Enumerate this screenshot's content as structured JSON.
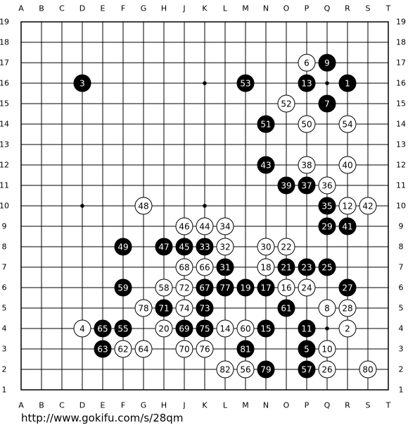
{
  "board": {
    "size": 19,
    "columns": [
      "A",
      "B",
      "C",
      "D",
      "E",
      "F",
      "G",
      "H",
      "J",
      "K",
      "L",
      "M",
      "N",
      "O",
      "P",
      "Q",
      "R",
      "S",
      "T"
    ],
    "rows": [
      "19",
      "18",
      "17",
      "16",
      "15",
      "14",
      "13",
      "12",
      "11",
      "10",
      "9",
      "8",
      "7",
      "6",
      "5",
      "4",
      "3",
      "2",
      "1"
    ],
    "hoshi": [
      "D16",
      "K16",
      "Q16",
      "D10",
      "K10",
      "Q10",
      "D4",
      "K4",
      "Q4"
    ],
    "colors": {
      "board": "#ffffff",
      "line": "#000000",
      "black_stone": "#000000",
      "white_stone": "#ffffff",
      "black_label": "#ffffff",
      "white_label": "#000000"
    }
  },
  "moves": [
    {
      "n": "1",
      "color": "black",
      "pt": "R16"
    },
    {
      "n": "2",
      "color": "white",
      "pt": "R4"
    },
    {
      "n": "3",
      "color": "black",
      "pt": "D16"
    },
    {
      "n": "4",
      "color": "white",
      "pt": "D4"
    },
    {
      "n": "5",
      "color": "black",
      "pt": "P3"
    },
    {
      "n": "6",
      "color": "white",
      "pt": "P17"
    },
    {
      "n": "7",
      "color": "black",
      "pt": "Q15"
    },
    {
      "n": "8",
      "color": "white",
      "pt": "Q5"
    },
    {
      "n": "9",
      "color": "black",
      "pt": "Q17"
    },
    {
      "n": "10",
      "color": "white",
      "pt": "Q3"
    },
    {
      "n": "11",
      "color": "black",
      "pt": "P4"
    },
    {
      "n": "12",
      "color": "white",
      "pt": "R10"
    },
    {
      "n": "13",
      "color": "black",
      "pt": "P16"
    },
    {
      "n": "14",
      "color": "white",
      "pt": "L4"
    },
    {
      "n": "15",
      "color": "black",
      "pt": "N4"
    },
    {
      "n": "16",
      "color": "white",
      "pt": "O6"
    },
    {
      "n": "17",
      "color": "black",
      "pt": "N6"
    },
    {
      "n": "18",
      "color": "white",
      "pt": "N7"
    },
    {
      "n": "19",
      "color": "black",
      "pt": "M6"
    },
    {
      "n": "20",
      "color": "white",
      "pt": "H4"
    },
    {
      "n": "21",
      "color": "black",
      "pt": "O7"
    },
    {
      "n": "22",
      "color": "white",
      "pt": "O8"
    },
    {
      "n": "23",
      "color": "black",
      "pt": "P7"
    },
    {
      "n": "24",
      "color": "white",
      "pt": "P6"
    },
    {
      "n": "25",
      "color": "black",
      "pt": "Q7"
    },
    {
      "n": "26",
      "color": "white",
      "pt": "Q2"
    },
    {
      "n": "27",
      "color": "black",
      "pt": "R6"
    },
    {
      "n": "28",
      "color": "white",
      "pt": "R5"
    },
    {
      "n": "29",
      "color": "black",
      "pt": "Q9"
    },
    {
      "n": "30",
      "color": "white",
      "pt": "N8"
    },
    {
      "n": "31",
      "color": "black",
      "pt": "L7"
    },
    {
      "n": "32",
      "color": "white",
      "pt": "L8"
    },
    {
      "n": "33",
      "color": "black",
      "pt": "K8"
    },
    {
      "n": "34",
      "color": "white",
      "pt": "L9"
    },
    {
      "n": "35",
      "color": "black",
      "pt": "Q10"
    },
    {
      "n": "36",
      "color": "white",
      "pt": "Q11"
    },
    {
      "n": "37",
      "color": "black",
      "pt": "P11"
    },
    {
      "n": "38",
      "color": "white",
      "pt": "P12"
    },
    {
      "n": "39",
      "color": "black",
      "pt": "O11"
    },
    {
      "n": "40",
      "color": "white",
      "pt": "R12"
    },
    {
      "n": "41",
      "color": "black",
      "pt": "R9"
    },
    {
      "n": "42",
      "color": "white",
      "pt": "S10"
    },
    {
      "n": "43",
      "color": "black",
      "pt": "N12"
    },
    {
      "n": "44",
      "color": "white",
      "pt": "K9"
    },
    {
      "n": "45",
      "color": "black",
      "pt": "J8"
    },
    {
      "n": "46",
      "color": "white",
      "pt": "J9"
    },
    {
      "n": "47",
      "color": "black",
      "pt": "H8"
    },
    {
      "n": "48",
      "color": "white",
      "pt": "G10"
    },
    {
      "n": "49",
      "color": "black",
      "pt": "F8"
    },
    {
      "n": "50",
      "color": "white",
      "pt": "P14"
    },
    {
      "n": "51",
      "color": "black",
      "pt": "N14"
    },
    {
      "n": "52",
      "color": "white",
      "pt": "O15"
    },
    {
      "n": "53",
      "color": "black",
      "pt": "M16"
    },
    {
      "n": "54",
      "color": "white",
      "pt": "R14"
    },
    {
      "n": "55",
      "color": "black",
      "pt": "F4"
    },
    {
      "n": "56",
      "color": "white",
      "pt": "M2"
    },
    {
      "n": "57",
      "color": "black",
      "pt": "P2"
    },
    {
      "n": "58",
      "color": "white",
      "pt": "H6"
    },
    {
      "n": "59",
      "color": "black",
      "pt": "F6"
    },
    {
      "n": "60",
      "color": "white",
      "pt": "M4"
    },
    {
      "n": "61",
      "color": "black",
      "pt": "O5"
    },
    {
      "n": "62",
      "color": "white",
      "pt": "F3"
    },
    {
      "n": "63",
      "color": "black",
      "pt": "E3"
    },
    {
      "n": "64",
      "color": "white",
      "pt": "G3"
    },
    {
      "n": "65",
      "color": "black",
      "pt": "E4"
    },
    {
      "n": "66",
      "color": "white",
      "pt": "K7"
    },
    {
      "n": "67",
      "color": "black",
      "pt": "K6"
    },
    {
      "n": "68",
      "color": "white",
      "pt": "J7"
    },
    {
      "n": "69",
      "color": "black",
      "pt": "J4"
    },
    {
      "n": "70",
      "color": "white",
      "pt": "J3"
    },
    {
      "n": "71",
      "color": "black",
      "pt": "H5"
    },
    {
      "n": "72",
      "color": "white",
      "pt": "J6"
    },
    {
      "n": "73",
      "color": "black",
      "pt": "K5"
    },
    {
      "n": "74",
      "color": "white",
      "pt": "J5"
    },
    {
      "n": "75",
      "color": "black",
      "pt": "K4"
    },
    {
      "n": "76",
      "color": "white",
      "pt": "K3"
    },
    {
      "n": "77",
      "color": "black",
      "pt": "L6"
    },
    {
      "n": "78",
      "color": "white",
      "pt": "G5"
    },
    {
      "n": "79",
      "color": "black",
      "pt": "N2"
    },
    {
      "n": "80",
      "color": "white",
      "pt": "S2"
    },
    {
      "n": "81",
      "color": "black",
      "pt": "M3"
    },
    {
      "n": "82",
      "color": "white",
      "pt": "L2"
    }
  ],
  "footer": {
    "link_text": "http://www.gokifu.com/s/28qm"
  }
}
